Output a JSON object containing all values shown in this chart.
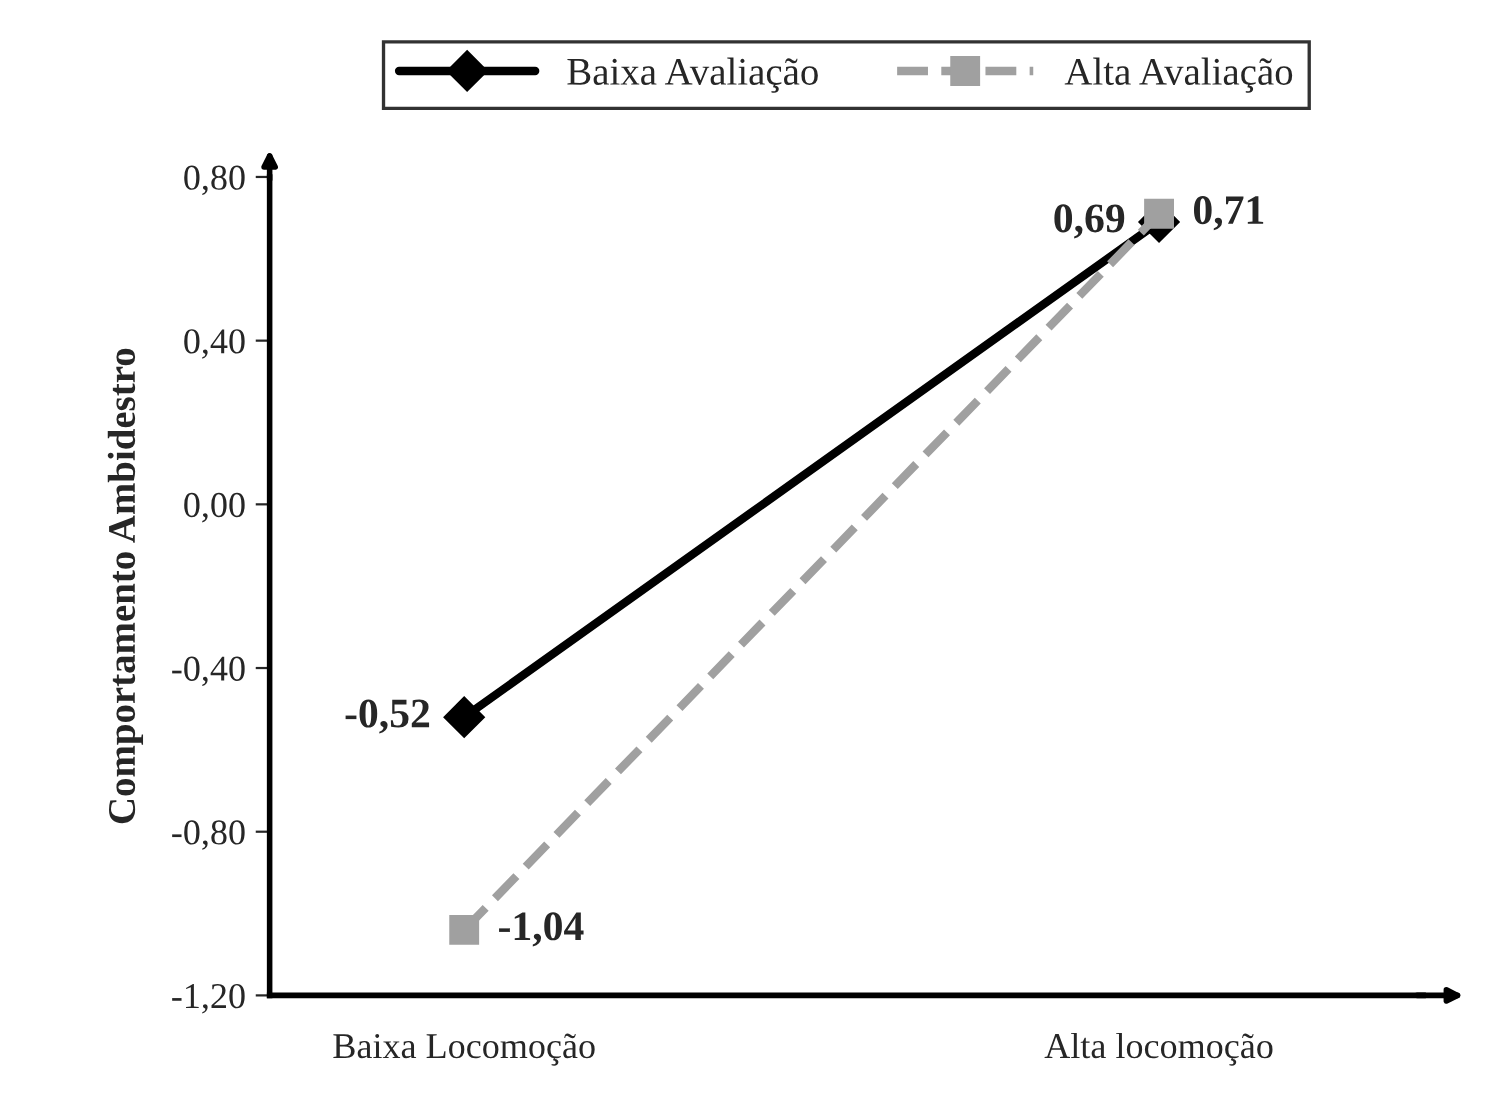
{
  "chart_data": {
    "type": "line",
    "ylabel": "Comportamento Ambidestro",
    "categories": [
      "Baixa Locomoção",
      "Alta locomoção"
    ],
    "series": [
      {
        "name": "Baixa Avaliação",
        "color": "#000000",
        "values": [
          -0.52,
          0.69
        ],
        "value_labels": [
          "-0,52",
          "0,69"
        ],
        "marker": "diamond",
        "line_style": "solid"
      },
      {
        "name": "Alta Avaliação",
        "color": "#a0a0a0",
        "values": [
          -1.04,
          0.71
        ],
        "value_labels": [
          "-1,04",
          "0,71"
        ],
        "marker": "square",
        "line_style": "dashed"
      }
    ],
    "ylim": [
      -1.2,
      0.8
    ],
    "yticks": [
      {
        "value": -1.2,
        "label": "-1,20"
      },
      {
        "value": -0.8,
        "label": "-0,80"
      },
      {
        "value": -0.4,
        "label": "-0,40"
      },
      {
        "value": 0,
        "label": "0,00"
      },
      {
        "value": 0.4,
        "label": "0,40"
      },
      {
        "value": 0.8,
        "label": "0,80"
      }
    ],
    "legend": "top",
    "grid": false
  }
}
